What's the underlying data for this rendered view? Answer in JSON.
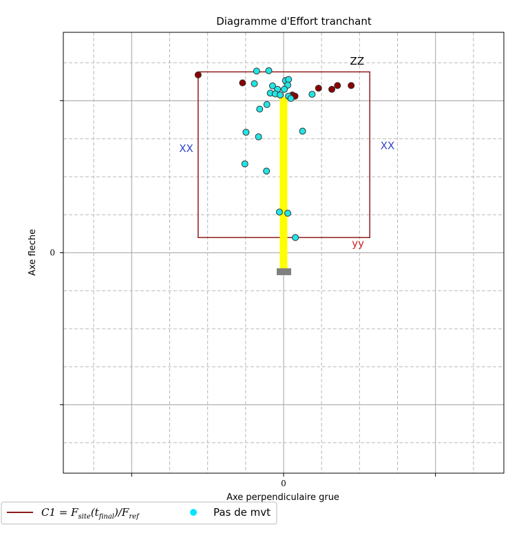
{
  "chart_data": {
    "type": "scatter",
    "title": "Diagramme d'Effort tranchant",
    "xlabel": "Axe perpendiculaire grue",
    "ylabel": "Axe fleche",
    "xlim": [
      -5.8,
      5.8
    ],
    "ylim": [
      -5.8,
      5.8
    ],
    "x_major_ticks": [
      -4,
      0,
      4
    ],
    "x_minor_ticks": [
      -5,
      -3,
      -2,
      -1,
      1,
      2,
      3,
      5
    ],
    "y_major_ticks": [
      -4,
      0,
      4
    ],
    "y_minor_ticks": [
      -5,
      -3,
      -2,
      -1,
      1,
      2,
      3,
      5
    ],
    "x_tick_labels": [
      {
        "value": 0,
        "label": "0"
      }
    ],
    "y_tick_labels": [
      {
        "value": 0,
        "label": "0"
      }
    ],
    "grid": true,
    "c1_envelope": {
      "x": [
        -2.25,
        2.27,
        2.27,
        -2.25,
        -2.25
      ],
      "y": [
        4.76,
        4.76,
        0.4,
        0.4,
        4.76
      ],
      "color": "#8b1a1a"
    },
    "bar": {
      "x": 0,
      "y_from": -0.5,
      "y_to": 4.1,
      "color": "#ffff00"
    },
    "base_marker": {
      "x": 0,
      "y": -0.5,
      "color": "#808080"
    },
    "annotations": [
      {
        "text": "ZZ",
        "x": 1.75,
        "y": 4.95,
        "color": "#000000"
      },
      {
        "text": "XX",
        "x": -2.75,
        "y": 2.65,
        "color": "#3344cc"
      },
      {
        "text": "XX",
        "x": 2.55,
        "y": 2.72,
        "color": "#3344cc"
      },
      {
        "text": "yy",
        "x": 1.8,
        "y": 0.15,
        "color": "#cc2222"
      }
    ],
    "series": [
      {
        "name": "C1",
        "color": "#8b0000",
        "points": [
          [
            -2.25,
            4.68
          ],
          [
            -1.08,
            4.47
          ],
          [
            0.23,
            4.15
          ],
          [
            0.3,
            4.12
          ],
          [
            0.92,
            4.33
          ],
          [
            1.27,
            4.3
          ],
          [
            1.42,
            4.4
          ],
          [
            1.78,
            4.4
          ]
        ]
      },
      {
        "name": "Pas de mvt",
        "color": "#22e5e5",
        "points": [
          [
            -0.71,
            4.78
          ],
          [
            -0.39,
            4.79
          ],
          [
            -0.77,
            4.45
          ],
          [
            0.05,
            4.53
          ],
          [
            0.13,
            4.56
          ],
          [
            0.11,
            4.41
          ],
          [
            -0.29,
            4.39
          ],
          [
            -0.16,
            4.3
          ],
          [
            0.02,
            4.3
          ],
          [
            -0.35,
            4.2
          ],
          [
            -0.22,
            4.18
          ],
          [
            -0.09,
            4.15
          ],
          [
            0.13,
            4.12
          ],
          [
            0.19,
            4.06
          ],
          [
            0.75,
            4.17
          ],
          [
            -0.44,
            3.9
          ],
          [
            -0.63,
            3.78
          ],
          [
            -0.99,
            3.17
          ],
          [
            -0.66,
            3.05
          ],
          [
            0.5,
            3.2
          ],
          [
            -1.02,
            2.34
          ],
          [
            -0.45,
            2.15
          ],
          [
            -0.11,
            1.07
          ],
          [
            0.11,
            1.04
          ],
          [
            0.31,
            0.4
          ]
        ]
      }
    ],
    "legend": {
      "position": "bottom-left",
      "entries": [
        {
          "label": "C1 = F_site(t_final)/F_ref",
          "label_lhs": "C1 = F",
          "label_sub1": "site",
          "label_mid": "(t",
          "label_sub2": "final",
          "label_rhs": ")/F",
          "label_sub3": "ref",
          "marker": "line",
          "color": "#8b1a1a"
        },
        {
          "label": "Pas de mvt",
          "marker": "circle",
          "color": "#00e5ff"
        }
      ]
    }
  }
}
